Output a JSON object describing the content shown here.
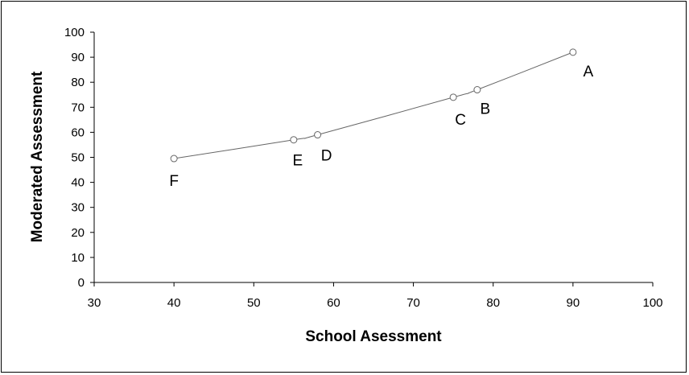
{
  "chart_data": {
    "type": "scatter",
    "title": "",
    "xlabel": "School Asessment",
    "ylabel": "Moderated Assessment",
    "xlim": [
      30,
      100
    ],
    "ylim": [
      0,
      100
    ],
    "xticks": [
      30,
      40,
      50,
      60,
      70,
      80,
      90,
      100
    ],
    "yticks": [
      0,
      10,
      20,
      30,
      40,
      50,
      60,
      70,
      80,
      90,
      100
    ],
    "grid": false,
    "legend": "none",
    "trendline": "smooth curve through points",
    "colors": {
      "line": "#666666",
      "marker": "#666666",
      "text": "#000000"
    },
    "points": [
      {
        "label": "F",
        "x": 40,
        "y": 49.5
      },
      {
        "label": "E",
        "x": 55,
        "y": 57
      },
      {
        "label": "D",
        "x": 58,
        "y": 59
      },
      {
        "label": "C",
        "x": 75,
        "y": 74
      },
      {
        "label": "B",
        "x": 78,
        "y": 77
      },
      {
        "label": "A",
        "x": 90,
        "y": 92
      }
    ]
  }
}
